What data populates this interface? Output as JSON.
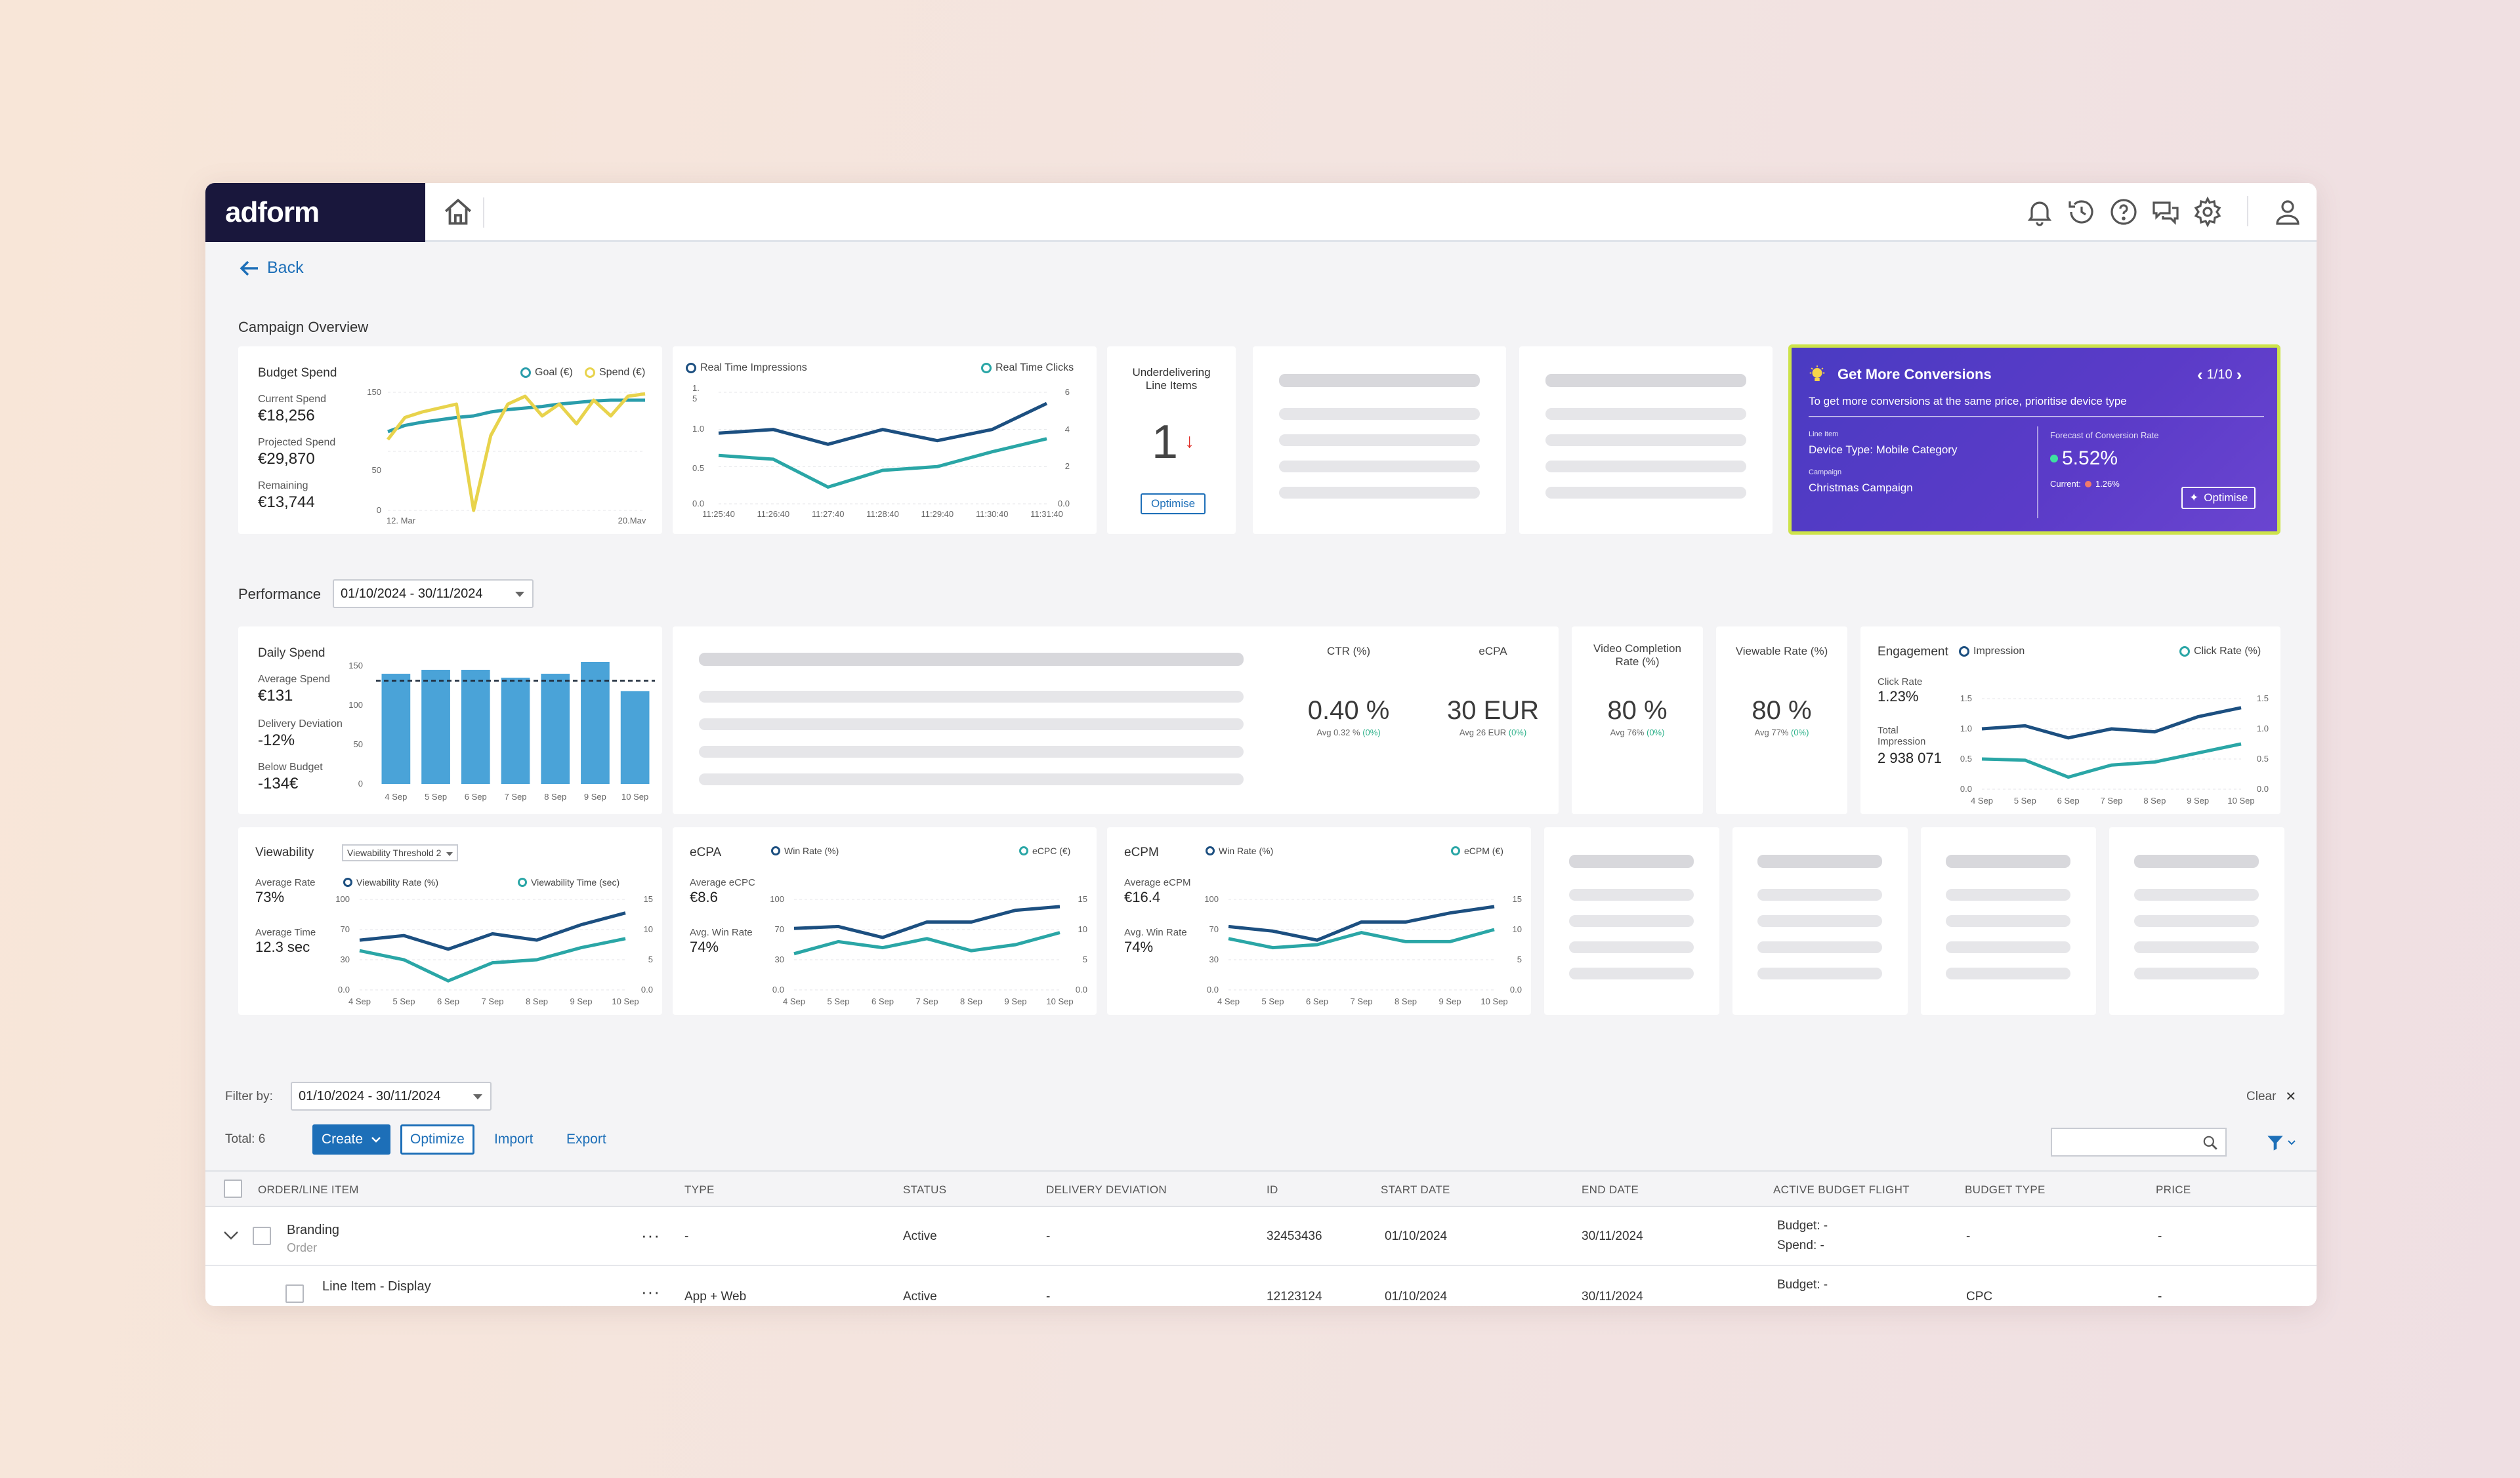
{
  "app": {
    "logo": "adform"
  },
  "nav": {
    "back": "Back"
  },
  "overview": {
    "title": "Campaign Overview",
    "budget": {
      "title": "Budget Spend",
      "legend_goal": "Goal (€)",
      "legend_spend": "Spend (€)",
      "current_label": "Current Spend",
      "current_value": "€18,256",
      "projected_label": "Projected Spend",
      "projected_value": "€29,870",
      "remaining_label": "Remaining",
      "remaining_value": "€13,744",
      "y_ticks": [
        "150",
        "50",
        "0"
      ],
      "x_start": "12. Mar",
      "x_end": "20.May"
    },
    "realtime": {
      "legend_impr": "Real Time Impressions",
      "legend_clicks": "Real Time Clicks",
      "y_left": [
        "1.",
        "5",
        "1.0",
        "0.5",
        "0.0"
      ],
      "y_right": [
        "6",
        "4",
        "2",
        "0.0"
      ],
      "x_ticks": [
        "11:25:40",
        "11:26:40",
        "11:27:40",
        "11:28:40",
        "11:29:40",
        "11:30:40",
        "11:31:40"
      ]
    },
    "underdelivering": {
      "title_1": "Underdelivering",
      "title_2": "Line Items",
      "count": "1",
      "arrow": "↓",
      "button": "Optimise"
    },
    "promo": {
      "title": "Get More Conversions",
      "pager": "1/10",
      "subtitle": "To get more conversions at the same price, prioritise device type",
      "line_item_label": "Line Item",
      "line_item_value": "Device Type: Mobile Category",
      "campaign_label": "Campaign",
      "campaign_value": "Christmas Campaign",
      "forecast_label": "Forecast of Conversion Rate",
      "forecast_value": "5.52%",
      "current_label": "Current:",
      "current_value": "1.26%",
      "button": "Optimise"
    }
  },
  "performance": {
    "title": "Performance",
    "date_range": "01/10/2024 - 30/11/2024",
    "daily_spend": {
      "title": "Daily Spend",
      "avg_label": "Average Spend",
      "avg_value": "€131",
      "dev_label": "Delivery Deviation",
      "dev_value": "-12%",
      "below_label": "Below Budget",
      "below_value": "-134€",
      "y_ticks": [
        "150",
        "100",
        "50",
        "0"
      ]
    },
    "metrics": [
      {
        "title": "CTR (%)",
        "value": "0.40 %",
        "avg": "Avg 0.32 %",
        "delta": "(0%)"
      },
      {
        "title": "eCPA",
        "value": "30 EUR",
        "avg": "Avg 26 EUR",
        "delta": "(0%)"
      },
      {
        "title": "Video Completion",
        "title2": "Rate (%)",
        "value": "80 %",
        "avg": "Avg 76%",
        "delta": "(0%)"
      },
      {
        "title": "Viewable Rate (%)",
        "value": "80 %",
        "avg": "Avg 77%",
        "delta": "(0%)"
      }
    ],
    "engagement": {
      "title": "Engagement",
      "legend_impr": "Impression",
      "legend_click": "Click Rate (%)",
      "click_label": "Click Rate",
      "click_value": "1.23%",
      "total_label": "Total",
      "total_label2": "Impression",
      "total_value": "2 938 071",
      "y_right": [
        "1.5",
        "1.0",
        "0.5",
        "0.0"
      ],
      "y_left": [
        "1.5",
        "1.0",
        "0.5",
        "0.0"
      ]
    },
    "viewability": {
      "title": "Viewability",
      "select": "Viewability Threshold 2",
      "legend_rate": "Viewability Rate (%)",
      "legend_time": "Viewability Time (sec)",
      "avg_rate_label": "Average Rate",
      "avg_rate_value": "73%",
      "avg_time_label": "Average Time",
      "avg_time_value": "12.3 sec",
      "y_left": [
        "100",
        "70",
        "30",
        "0.0"
      ],
      "y_right": [
        "15",
        "10",
        "5",
        "0.0"
      ]
    },
    "ecpa": {
      "title": "eCPA",
      "legend_win": "Win Rate (%)",
      "legend_val": "eCPC (€)",
      "avg_label": "Average eCPC",
      "avg_value": "€8.6",
      "win_label": "Avg. Win Rate",
      "win_value": "74%",
      "y_left": [
        "100",
        "70",
        "30",
        "0.0"
      ],
      "y_right": [
        "15",
        "10",
        "5",
        "0.0"
      ]
    },
    "ecpm": {
      "title": "eCPM",
      "legend_win": "Win Rate (%)",
      "legend_val": "eCPM (€)",
      "avg_label": "Average eCPM",
      "avg_value": "€16.4",
      "win_label": "Avg. Win Rate",
      "win_value": "74%",
      "y_left": [
        "100",
        "70",
        "30",
        "0.0"
      ],
      "y_right": [
        "15",
        "10",
        "5",
        "0.0"
      ]
    },
    "date_ticks": [
      "4 Sep",
      "5 Sep",
      "6 Sep",
      "7 Sep",
      "8 Sep",
      "9 Sep",
      "10 Sep"
    ]
  },
  "chart_data": [
    {
      "type": "line",
      "title": "Budget Spend",
      "series": [
        {
          "name": "Goal (€)",
          "color": "#2a9dab",
          "values": [
            100,
            108,
            112,
            115,
            118,
            120,
            125,
            128,
            130,
            132,
            135,
            137,
            139,
            140,
            140,
            140
          ]
        },
        {
          "name": "Spend (€)",
          "color": "#e8d34c",
          "values": [
            90,
            118,
            125,
            130,
            135,
            0,
            95,
            135,
            145,
            120,
            135,
            110,
            140,
            120,
            145,
            148
          ]
        }
      ],
      "ylim": [
        0,
        150
      ]
    },
    {
      "type": "line",
      "series": [
        {
          "name": "Real Time Impressions",
          "color": "#1c4f80",
          "values": [
            0.95,
            1.0,
            0.8,
            1.0,
            0.85,
            1.0,
            1.35
          ]
        },
        {
          "name": "Real Time Clicks",
          "color": "#2aa6a6",
          "values": [
            2.6,
            2.4,
            0.9,
            1.8,
            2.0,
            2.8,
            3.5
          ]
        }
      ],
      "x": [
        "11:25:40",
        "11:26:40",
        "11:27:40",
        "11:28:40",
        "11:29:40",
        "11:30:40",
        "11:31:40"
      ]
    },
    {
      "type": "bar",
      "title": "Daily Spend",
      "categories": [
        "4 Sep",
        "5 Sep",
        "6 Sep",
        "7 Sep",
        "8 Sep",
        "9 Sep",
        "10 Sep"
      ],
      "values": [
        140,
        145,
        145,
        135,
        140,
        155,
        118
      ],
      "reference_line": 131,
      "ylim": [
        0,
        150
      ],
      "color": "#4aa3d8"
    },
    {
      "type": "line",
      "title": "Engagement",
      "categories": [
        "4 Sep",
        "5 Sep",
        "6 Sep",
        "7 Sep",
        "8 Sep",
        "9 Sep",
        "10 Sep"
      ],
      "series": [
        {
          "name": "Impression",
          "color": "#1c4f80",
          "values": [
            1.0,
            1.05,
            0.85,
            1.0,
            0.95,
            1.2,
            1.35
          ]
        },
        {
          "name": "Click Rate (%)",
          "color": "#2aa6a6",
          "values": [
            0.5,
            0.48,
            0.2,
            0.4,
            0.45,
            0.6,
            0.75
          ]
        }
      ]
    },
    {
      "type": "line",
      "title": "Viewability",
      "categories": [
        "4 Sep",
        "5 Sep",
        "6 Sep",
        "7 Sep",
        "8 Sep",
        "9 Sep",
        "10 Sep"
      ],
      "series": [
        {
          "name": "Viewability Rate (%)",
          "color": "#1c4f80",
          "values": [
            55,
            60,
            45,
            62,
            55,
            72,
            85
          ]
        },
        {
          "name": "Viewability Time (sec)",
          "color": "#2aa6a6",
          "values": [
            6.5,
            5.0,
            1.5,
            4.5,
            5.0,
            7.0,
            8.5
          ]
        }
      ]
    },
    {
      "type": "line",
      "title": "eCPA",
      "categories": [
        "4 Sep",
        "5 Sep",
        "6 Sep",
        "7 Sep",
        "8 Sep",
        "9 Sep",
        "10 Sep"
      ],
      "series": [
        {
          "name": "Win Rate (%)",
          "color": "#1c4f80",
          "values": [
            68,
            70,
            58,
            75,
            75,
            88,
            92
          ]
        },
        {
          "name": "eCPC (€)",
          "color": "#2aa6a6",
          "values": [
            6.0,
            8.0,
            7.0,
            8.5,
            6.5,
            7.5,
            9.5
          ]
        }
      ]
    },
    {
      "type": "line",
      "title": "eCPM",
      "categories": [
        "4 Sep",
        "5 Sep",
        "6 Sep",
        "7 Sep",
        "8 Sep",
        "9 Sep",
        "10 Sep"
      ],
      "series": [
        {
          "name": "Win Rate (%)",
          "color": "#1c4f80",
          "values": [
            70,
            65,
            55,
            75,
            75,
            85,
            92
          ]
        },
        {
          "name": "eCPM (€)",
          "color": "#2aa6a6",
          "values": [
            8.5,
            7.0,
            7.5,
            9.5,
            8.0,
            8.0,
            10.0
          ]
        }
      ]
    }
  ],
  "filter": {
    "label": "Filter by:",
    "date_range": "01/10/2024 - 30/11/2024",
    "clear": "Clear",
    "total": "Total: 6",
    "create": "Create",
    "optimize": "Optimize",
    "import": "Import",
    "export": "Export",
    "search_placeholder": ""
  },
  "table": {
    "headers": [
      "ORDER/LINE ITEM",
      "TYPE",
      "STATUS",
      "DELIVERY DEVIATION",
      "ID",
      "START DATE",
      "END DATE",
      "ACTIVE BUDGET FLIGHT",
      "BUDGET TYPE",
      "PRICE"
    ],
    "rows": [
      {
        "name": "Branding",
        "sub": "Order",
        "type": "-",
        "status": "Active",
        "deviation": "-",
        "id": "32453436",
        "start": "01/10/2024",
        "end": "30/11/2024",
        "budget1": "Budget: -",
        "budget2": "Spend: -",
        "budget_type": "-",
        "price": "-"
      },
      {
        "name": "Line Item - Display",
        "sub": "",
        "type": "App + Web",
        "status": "Active",
        "deviation": "-",
        "id": "12123124",
        "start": "01/10/2024",
        "end": "30/11/2024",
        "budget1": "Budget: -",
        "budget2": "",
        "budget_type": "CPC",
        "price": "-"
      }
    ]
  },
  "colors": {
    "navy": "#19173c",
    "accent": "#1d6fb8",
    "line_dark": "#1c4f80",
    "line_teal": "#2aa6a6",
    "gold": "#e8d34c",
    "bar": "#4aa3d8"
  }
}
